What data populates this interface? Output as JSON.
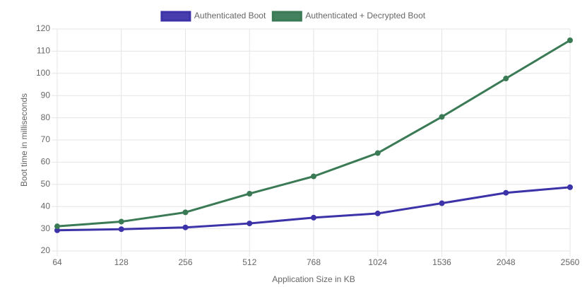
{
  "chart_data": {
    "type": "line",
    "x_label": "Application Size in KB",
    "y_label": "Boot time in milliseconds",
    "categories": [
      "64",
      "128",
      "256",
      "512",
      "768",
      "1024",
      "1536",
      "2048",
      "2560"
    ],
    "series": [
      {
        "name": "Authenticated Boot",
        "color": "#3d33a8",
        "values": [
          29.3,
          29.8,
          30.6,
          32.4,
          35.0,
          36.9,
          41.5,
          46.2,
          48.7
        ]
      },
      {
        "name": "Authenticated + Decrypted Boot",
        "color": "#3a7a55",
        "values": [
          31.1,
          33.2,
          37.4,
          45.8,
          53.6,
          64.1,
          80.4,
          97.7,
          114.9
        ]
      }
    ],
    "ylim": [
      20,
      120
    ],
    "yticks": [
      20,
      30,
      40,
      50,
      60,
      70,
      80,
      90,
      100,
      110,
      120
    ],
    "grid": true,
    "legend": "top"
  }
}
